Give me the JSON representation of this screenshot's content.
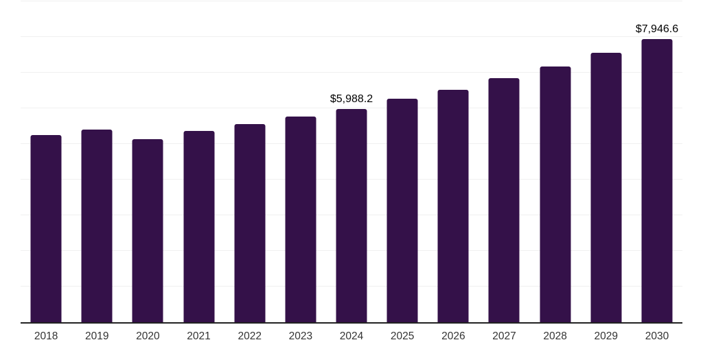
{
  "chart_data": {
    "type": "bar",
    "title": "",
    "xlabel": "",
    "ylabel": "",
    "categories": [
      "2018",
      "2019",
      "2020",
      "2021",
      "2022",
      "2023",
      "2024",
      "2025",
      "2026",
      "2027",
      "2028",
      "2029",
      "2030"
    ],
    "values": [
      5250.0,
      5400.0,
      5130.0,
      5365.0,
      5560.0,
      5770.0,
      5988.2,
      6265.0,
      6520.0,
      6845.0,
      7170.0,
      7555.0,
      7946.6
    ],
    "data_labels": {
      "2024": "$5,988.2",
      "2030": "$7,946.6"
    },
    "ylim": [
      0,
      9000
    ],
    "gridline_interval": 1000,
    "grid": "horizontal-only",
    "legend": "none",
    "colors": {
      "bar": "#341149",
      "gridline": "#f0f0f0",
      "axis_line": "#222222",
      "tick_label": "#333333",
      "data_label": "#000000",
      "background": "#ffffff"
    }
  }
}
